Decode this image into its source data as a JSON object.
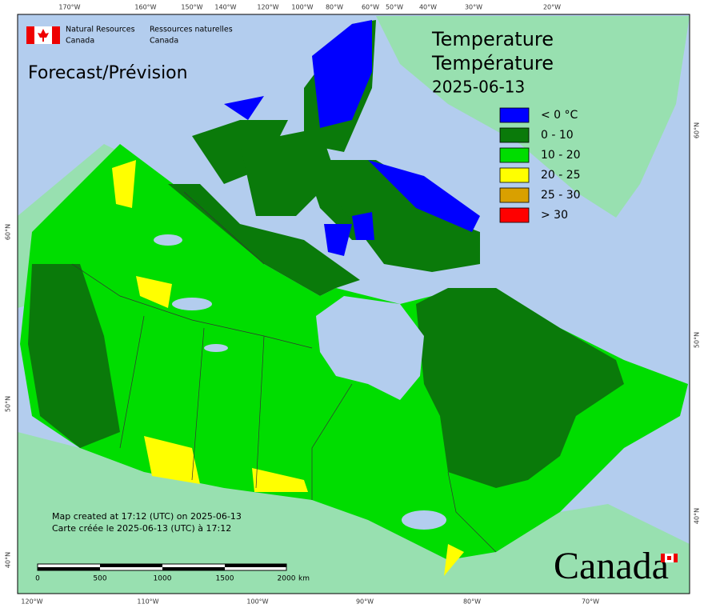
{
  "header": {
    "org_en": [
      "Natural Resources",
      "Canada"
    ],
    "org_fr": [
      "Ressources naturelles",
      "Canada"
    ]
  },
  "forecast_label": "Forecast/Prévision",
  "title": [
    "Temperature",
    "Température",
    "2025-06-13"
  ],
  "legend": [
    {
      "label": "< 0 °C",
      "color": "#0000ff"
    },
    {
      "label": "0 - 10",
      "color": "#0a7a0a"
    },
    {
      "label": "10 - 20",
      "color": "#00dd00"
    },
    {
      "label": "20 - 25",
      "color": "#ffff00"
    },
    {
      "label": "25 - 30",
      "color": "#d9a000"
    },
    {
      "label": "> 30",
      "color": "#ff0000"
    }
  ],
  "top_lon_labels": [
    "170°W",
    "160°W",
    "150°W",
    "140°W",
    "120°W",
    "100°W",
    "80°W",
    "60°W",
    "50°W",
    "40°W",
    "30°W",
    "20°W"
  ],
  "bottom_lon_labels": [
    "120°W",
    "110°W",
    "100°W",
    "90°W",
    "80°W",
    "70°W"
  ],
  "left_lat_labels": [
    "60°N",
    "50°N",
    "40°N"
  ],
  "right_lat_labels": [
    "60°N",
    "50°N",
    "40°N"
  ],
  "credits": [
    "Map created at 17:12 (UTC) on 2025-06-13",
    "Carte créée le 2025-06-13 (UTC) à 17:12"
  ],
  "scale": {
    "labels": [
      "0",
      "500",
      "1000",
      "1500",
      "2000"
    ],
    "unit": "km"
  },
  "wordmark": "Canada"
}
